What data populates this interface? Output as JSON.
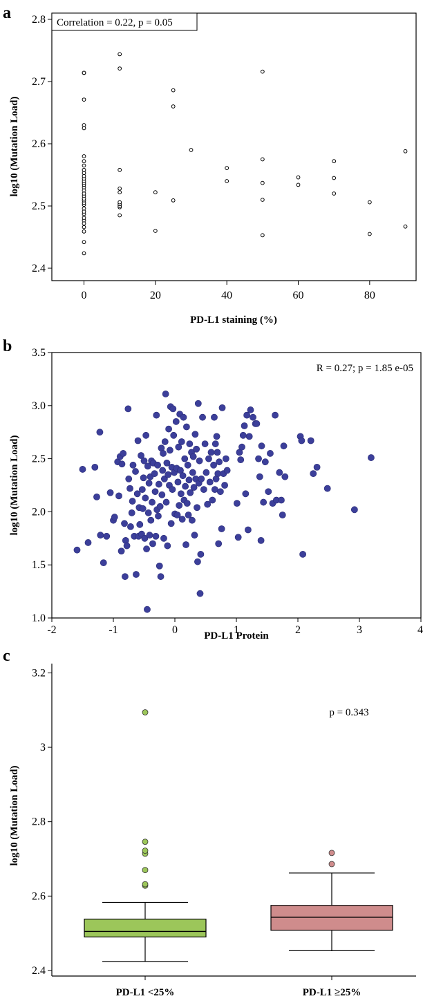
{
  "panels": {
    "a": {
      "letter": "a"
    },
    "b": {
      "letter": "b"
    },
    "c": {
      "letter": "c"
    }
  },
  "chart_data": [
    {
      "type": "scatter",
      "title": "",
      "xlabel": "PD-L1 staining (%)",
      "ylabel": "log10 (Mutation Load)",
      "annotation": "Correlation = 0.22, p = 0.05",
      "xlim": [
        -9,
        93
      ],
      "ylim": [
        2.38,
        2.81
      ],
      "xticks": [
        0,
        20,
        40,
        60,
        80
      ],
      "xtick_labels": [
        "0",
        "20",
        "40",
        "60",
        "80"
      ],
      "yticks": [
        2.4,
        2.5,
        2.6,
        2.7,
        2.8
      ],
      "ytick_labels": [
        "2.4",
        "2.5",
        "2.6",
        "2.7",
        "2.8"
      ],
      "marker": "open-circle",
      "grid": false,
      "points": [
        [
          0,
          2.424
        ],
        [
          0,
          2.442
        ],
        [
          0,
          2.459
        ],
        [
          0,
          2.466
        ],
        [
          0,
          2.472
        ],
        [
          0,
          2.477
        ],
        [
          0,
          2.481
        ],
        [
          0,
          2.487
        ],
        [
          0,
          2.491
        ],
        [
          0,
          2.496
        ],
        [
          0,
          2.502
        ],
        [
          0,
          2.505
        ],
        [
          0,
          2.509
        ],
        [
          0,
          2.512
        ],
        [
          0,
          2.516
        ],
        [
          0,
          2.52
        ],
        [
          0,
          2.525
        ],
        [
          0,
          2.53
        ],
        [
          0,
          2.534
        ],
        [
          0,
          2.537
        ],
        [
          0,
          2.54
        ],
        [
          0,
          2.544
        ],
        [
          0,
          2.548
        ],
        [
          0,
          2.553
        ],
        [
          0,
          2.558
        ],
        [
          0,
          2.565
        ],
        [
          0,
          2.572
        ],
        [
          0,
          2.58
        ],
        [
          0,
          2.625
        ],
        [
          0,
          2.63
        ],
        [
          0,
          2.671
        ],
        [
          0,
          2.714
        ],
        [
          0,
          2.714
        ],
        [
          10,
          2.485
        ],
        [
          10,
          2.498
        ],
        [
          10,
          2.5
        ],
        [
          10,
          2.503
        ],
        [
          10,
          2.506
        ],
        [
          10,
          2.522
        ],
        [
          10,
          2.528
        ],
        [
          10,
          2.558
        ],
        [
          10,
          2.721
        ],
        [
          10,
          2.744
        ],
        [
          20,
          2.46
        ],
        [
          20,
          2.522
        ],
        [
          25,
          2.509
        ],
        [
          25,
          2.66
        ],
        [
          25,
          2.686
        ],
        [
          30,
          2.59
        ],
        [
          40,
          2.54
        ],
        [
          40,
          2.561
        ],
        [
          50,
          2.453
        ],
        [
          50,
          2.51
        ],
        [
          50,
          2.537
        ],
        [
          50,
          2.575
        ],
        [
          50,
          2.716
        ],
        [
          60,
          2.534
        ],
        [
          60,
          2.546
        ],
        [
          70,
          2.52
        ],
        [
          70,
          2.545
        ],
        [
          70,
          2.572
        ],
        [
          80,
          2.455
        ],
        [
          80,
          2.506
        ],
        [
          90,
          2.467
        ],
        [
          90,
          2.588
        ]
      ]
    },
    {
      "type": "scatter",
      "title": "",
      "xlabel": "PD-L1 Protein",
      "ylabel": "log10 (Mutation Load)",
      "annotation": "R = 0.27; p = 1.85 e-05",
      "xlim": [
        -2,
        4
      ],
      "ylim": [
        1.0,
        3.5
      ],
      "xticks": [
        -2,
        -1,
        0,
        1,
        2,
        3,
        4
      ],
      "xtick_labels": [
        "-2",
        "-1",
        "0",
        "1",
        "2",
        "3",
        "4"
      ],
      "yticks": [
        1.0,
        1.5,
        2.0,
        2.5,
        3.0,
        3.5
      ],
      "ytick_labels": [
        "1.0",
        "1.5",
        "2.0",
        "2.5",
        "3.0",
        "3.5"
      ],
      "marker": "filled-circle",
      "marker_color": "#3c3f9a",
      "grid": false,
      "points": [
        [
          -1.59,
          1.64
        ],
        [
          -1.5,
          2.4
        ],
        [
          -1.41,
          1.71
        ],
        [
          -1.3,
          2.42
        ],
        [
          -1.27,
          2.14
        ],
        [
          -1.22,
          2.75
        ],
        [
          -1.21,
          1.78
        ],
        [
          -1.16,
          1.52
        ],
        [
          -1.11,
          1.77
        ],
        [
          -1.05,
          2.18
        ],
        [
          -1.0,
          1.92
        ],
        [
          -0.98,
          1.95
        ],
        [
          -0.93,
          2.47
        ],
        [
          -0.91,
          2.15
        ],
        [
          -0.89,
          2.52
        ],
        [
          -0.87,
          1.63
        ],
        [
          -0.86,
          2.45
        ],
        [
          -0.84,
          2.55
        ],
        [
          -0.82,
          1.89
        ],
        [
          -0.81,
          1.39
        ],
        [
          -0.8,
          1.73
        ],
        [
          -0.78,
          1.68
        ],
        [
          -0.76,
          2.97
        ],
        [
          -0.75,
          2.31
        ],
        [
          -0.73,
          2.22
        ],
        [
          -0.72,
          1.86
        ],
        [
          -0.7,
          1.99
        ],
        [
          -0.69,
          2.1
        ],
        [
          -0.68,
          2.44
        ],
        [
          -0.66,
          1.77
        ],
        [
          -0.64,
          2.38
        ],
        [
          -0.63,
          1.41
        ],
        [
          -0.61,
          2.17
        ],
        [
          -0.6,
          2.67
        ],
        [
          -0.59,
          1.77
        ],
        [
          -0.58,
          2.04
        ],
        [
          -0.57,
          1.88
        ],
        [
          -0.55,
          2.53
        ],
        [
          -0.54,
          1.79
        ],
        [
          -0.53,
          2.21
        ],
        [
          -0.52,
          2.03
        ],
        [
          -0.51,
          2.32
        ],
        [
          -0.5,
          2.48
        ],
        [
          -0.49,
          1.75
        ],
        [
          -0.48,
          2.13
        ],
        [
          -0.47,
          2.72
        ],
        [
          -0.46,
          1.65
        ],
        [
          -0.45,
          1.08
        ],
        [
          -0.44,
          2.43
        ],
        [
          -0.43,
          1.99
        ],
        [
          -0.42,
          2.27
        ],
        [
          -0.41,
          1.78
        ],
        [
          -0.4,
          2.33
        ],
        [
          -0.39,
          1.92
        ],
        [
          -0.38,
          2.48
        ],
        [
          -0.37,
          2.09
        ],
        [
          -0.36,
          1.7
        ],
        [
          -0.35,
          2.46
        ],
        [
          -0.33,
          2.36
        ],
        [
          -0.32,
          2.19
        ],
        [
          -0.31,
          1.77
        ],
        [
          -0.3,
          2.91
        ],
        [
          -0.29,
          2.02
        ],
        [
          -0.28,
          2.44
        ],
        [
          -0.27,
          1.96
        ],
        [
          -0.26,
          2.26
        ],
        [
          -0.25,
          1.49
        ],
        [
          -0.24,
          2.05
        ],
        [
          -0.23,
          1.39
        ],
        [
          -0.22,
          2.6
        ],
        [
          -0.21,
          2.16
        ],
        [
          -0.2,
          2.39
        ],
        [
          -0.19,
          2.55
        ],
        [
          -0.18,
          1.75
        ],
        [
          -0.17,
          2.31
        ],
        [
          -0.16,
          2.66
        ],
        [
          -0.15,
          3.11
        ],
        [
          -0.14,
          2.09
        ],
        [
          -0.13,
          2.46
        ],
        [
          -0.12,
          1.68
        ],
        [
          -0.11,
          2.35
        ],
        [
          -0.1,
          2.78
        ],
        [
          -0.09,
          2.25
        ],
        [
          -0.08,
          2.58
        ],
        [
          -0.07,
          2.99
        ],
        [
          -0.06,
          1.89
        ],
        [
          -0.05,
          2.42
        ],
        [
          -0.04,
          2.21
        ],
        [
          -0.03,
          2.97
        ],
        [
          -0.02,
          2.72
        ],
        [
          -0.01,
          2.37
        ],
        [
          0.0,
          1.98
        ],
        [
          0.02,
          2.85
        ],
        [
          0.03,
          2.41
        ],
        [
          0.04,
          1.97
        ],
        [
          0.05,
          2.28
        ],
        [
          0.06,
          2.61
        ],
        [
          0.07,
          2.06
        ],
        [
          0.08,
          2.92
        ],
        [
          0.09,
          2.39
        ],
        [
          0.1,
          2.17
        ],
        [
          0.11,
          2.66
        ],
        [
          0.12,
          1.93
        ],
        [
          0.13,
          2.34
        ],
        [
          0.14,
          2.89
        ],
        [
          0.15,
          2.11
        ],
        [
          0.16,
          2.5
        ],
        [
          0.17,
          2.24
        ],
        [
          0.18,
          1.69
        ],
        [
          0.19,
          2.8
        ],
        [
          0.2,
          2.08
        ],
        [
          0.21,
          2.44
        ],
        [
          0.22,
          1.97
        ],
        [
          0.23,
          2.3
        ],
        [
          0.24,
          2.64
        ],
        [
          0.25,
          2.18
        ],
        [
          0.27,
          2.56
        ],
        [
          0.28,
          1.92
        ],
        [
          0.29,
          2.37
        ],
        [
          0.3,
          2.52
        ],
        [
          0.31,
          2.23
        ],
        [
          0.32,
          1.78
        ],
        [
          0.33,
          2.73
        ],
        [
          0.34,
          2.31
        ],
        [
          0.35,
          2.59
        ],
        [
          0.36,
          2.04
        ],
        [
          0.37,
          1.53
        ],
        [
          0.38,
          3.02
        ],
        [
          0.39,
          2.27
        ],
        [
          0.4,
          2.48
        ],
        [
          0.41,
          1.23
        ],
        [
          0.42,
          1.6
        ],
        [
          0.43,
          2.31
        ],
        [
          0.45,
          2.89
        ],
        [
          0.47,
          2.21
        ],
        [
          0.49,
          2.64
        ],
        [
          0.51,
          2.37
        ],
        [
          0.53,
          2.07
        ],
        [
          0.55,
          2.5
        ],
        [
          0.57,
          2.28
        ],
        [
          0.59,
          2.56
        ],
        [
          0.61,
          2.11
        ],
        [
          0.63,
          2.44
        ],
        [
          0.64,
          2.89
        ],
        [
          0.65,
          2.21
        ],
        [
          0.66,
          2.64
        ],
        [
          0.67,
          2.31
        ],
        [
          0.68,
          2.71
        ],
        [
          0.69,
          2.56
        ],
        [
          0.7,
          2.36
        ],
        [
          0.71,
          1.7
        ],
        [
          0.72,
          2.47
        ],
        [
          0.74,
          2.19
        ],
        [
          0.76,
          1.84
        ],
        [
          0.77,
          2.98
        ],
        [
          0.79,
          2.36
        ],
        [
          0.81,
          2.25
        ],
        [
          0.83,
          2.5
        ],
        [
          0.85,
          2.39
        ],
        [
          1.01,
          2.08
        ],
        [
          1.03,
          1.76
        ],
        [
          1.05,
          2.56
        ],
        [
          1.07,
          2.49
        ],
        [
          1.09,
          2.61
        ],
        [
          1.11,
          2.72
        ],
        [
          1.13,
          2.81
        ],
        [
          1.15,
          2.17
        ],
        [
          1.17,
          2.91
        ],
        [
          1.19,
          1.83
        ],
        [
          1.21,
          2.71
        ],
        [
          1.23,
          2.96
        ],
        [
          1.27,
          2.89
        ],
        [
          1.31,
          2.83
        ],
        [
          1.33,
          2.83
        ],
        [
          1.36,
          2.5
        ],
        [
          1.38,
          2.33
        ],
        [
          1.4,
          1.73
        ],
        [
          1.41,
          2.62
        ],
        [
          1.44,
          2.09
        ],
        [
          1.47,
          2.47
        ],
        [
          1.52,
          2.19
        ],
        [
          1.55,
          2.55
        ],
        [
          1.59,
          2.08
        ],
        [
          1.63,
          2.91
        ],
        [
          1.65,
          2.11
        ],
        [
          1.7,
          2.37
        ],
        [
          1.73,
          2.11
        ],
        [
          1.75,
          1.97
        ],
        [
          1.77,
          2.62
        ],
        [
          1.79,
          2.33
        ],
        [
          2.04,
          2.71
        ],
        [
          2.06,
          2.67
        ],
        [
          2.08,
          1.6
        ],
        [
          2.21,
          2.67
        ],
        [
          2.25,
          2.36
        ],
        [
          2.31,
          2.42
        ],
        [
          2.48,
          2.22
        ],
        [
          2.92,
          2.02
        ],
        [
          3.19,
          2.51
        ]
      ]
    },
    {
      "type": "box",
      "title": "",
      "xlabel": "",
      "ylabel": "log10 (Mutation Load)",
      "annotation": "p = 0.343",
      "ylim": [
        2.385,
        3.225
      ],
      "yticks": [
        2.4,
        2.6,
        2.8,
        3.0,
        3.2
      ],
      "ytick_labels": [
        "2.4",
        "2.6",
        "2.8",
        "3",
        "3.2"
      ],
      "categories": [
        "PD-L1 <25%",
        "PD-L1 ≥25%"
      ],
      "boxes": [
        {
          "category": "PD-L1 <25%",
          "whisker_low": 2.424,
          "q1": 2.49,
          "median": 2.505,
          "q3": 2.538,
          "whisker_high": 2.583,
          "outliers": [
            2.628,
            2.632,
            2.67,
            2.714,
            2.722,
            2.746,
            3.094
          ],
          "color": "#9cc65a"
        },
        {
          "category": "PD-L1 ≥25%",
          "whisker_low": 2.453,
          "q1": 2.508,
          "median": 2.543,
          "q3": 2.575,
          "whisker_high": 2.662,
          "outliers": [
            2.686,
            2.716
          ],
          "color": "#cf8c8c"
        }
      ]
    }
  ]
}
